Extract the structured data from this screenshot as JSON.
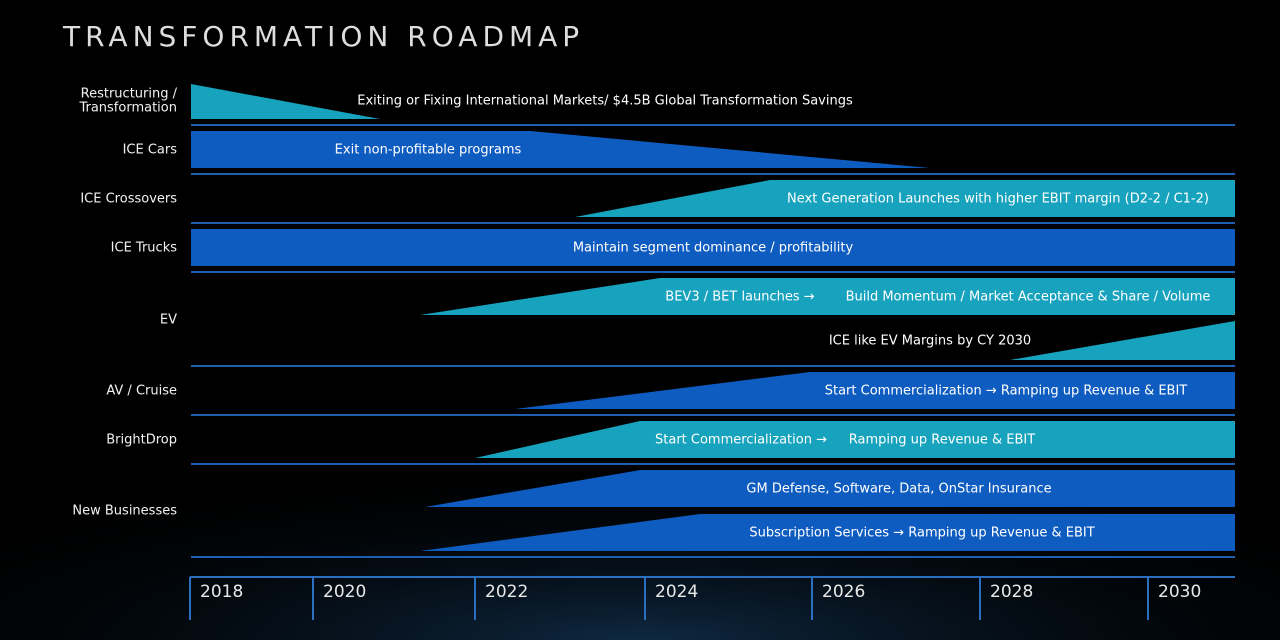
{
  "title": "TRANSFORMATION ROADMAP",
  "rows": [
    {
      "label_lines": [
        "Restructuring /",
        "Transformation"
      ],
      "bars": [
        {
          "texts": [
            "Exiting or Fixing International  Markets/ $4.5B Global Transformation Savings"
          ]
        }
      ]
    },
    {
      "label_lines": [
        "ICE Cars"
      ],
      "bars": [
        {
          "texts": [
            "Exit non-profitable programs"
          ]
        }
      ]
    },
    {
      "label_lines": [
        "ICE Crossovers"
      ],
      "bars": [
        {
          "texts": [
            "Next Generation Launches with higher EBIT margin (D2-2 / C1-2)"
          ]
        }
      ]
    },
    {
      "label_lines": [
        "ICE Trucks"
      ],
      "bars": [
        {
          "texts": [
            "Maintain segment dominance / profitability"
          ]
        }
      ]
    },
    {
      "label_lines": [
        "EV"
      ],
      "bars": [
        {
          "texts": [
            "BEV3 / BET launches →",
            "Build Momentum / Market Acceptance & Share / Volume"
          ]
        },
        {
          "texts": [
            "ICE like EV Margins by CY 2030"
          ]
        }
      ]
    },
    {
      "label_lines": [
        "AV / Cruise"
      ],
      "bars": [
        {
          "texts": [
            "Start Commercialization → Ramping up Revenue & EBIT"
          ]
        }
      ]
    },
    {
      "label_lines": [
        "BrightDrop"
      ],
      "bars": [
        {
          "texts": [
            "Start Commercialization →",
            "Ramping up Revenue & EBIT"
          ]
        }
      ]
    },
    {
      "label_lines": [
        "New Businesses"
      ],
      "bars": [
        {
          "texts": [
            "GM Defense, Software, Data, OnStar Insurance"
          ]
        },
        {
          "texts": [
            "Subscription Services → Ramping up Revenue & EBIT"
          ]
        }
      ]
    }
  ],
  "years": [
    "2018",
    "2020",
    "2022",
    "2024",
    "2026",
    "2028",
    "2030"
  ]
}
